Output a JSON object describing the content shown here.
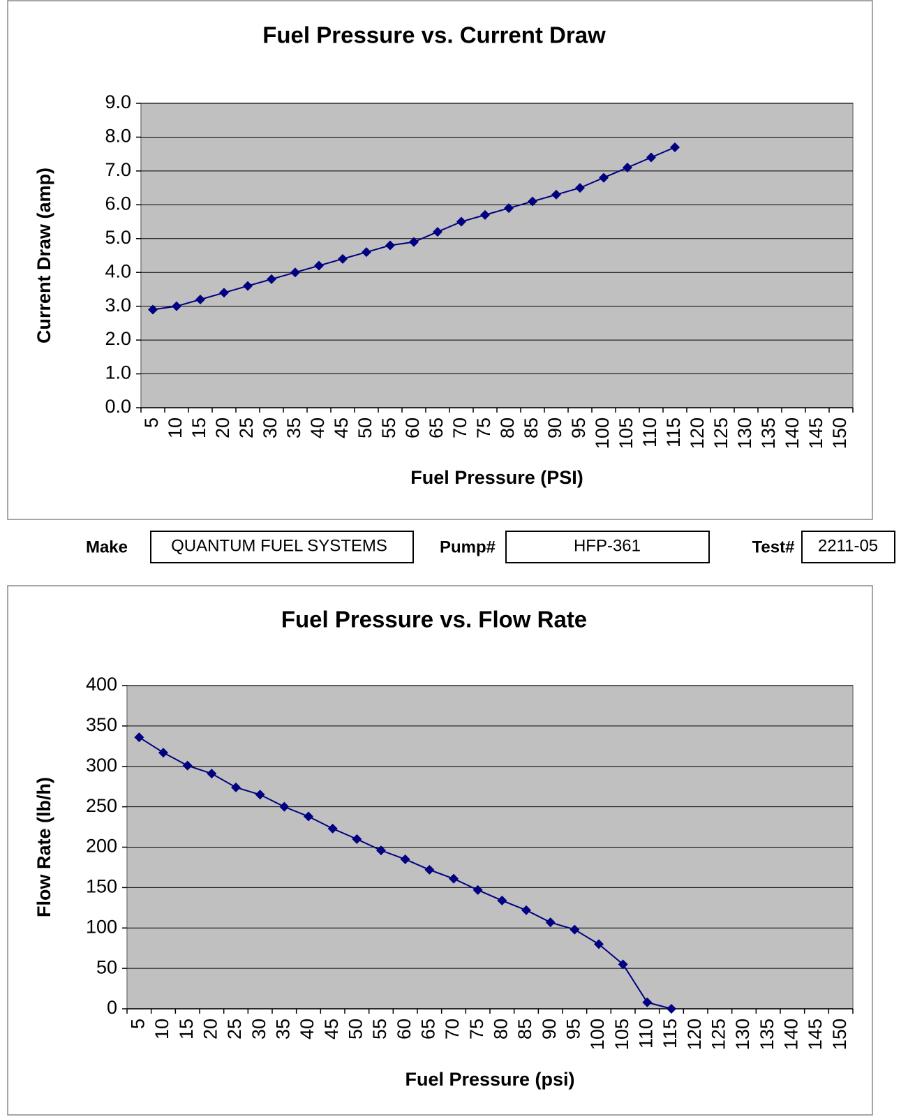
{
  "chart_data": [
    {
      "type": "line",
      "title": "Fuel Pressure vs. Current Draw",
      "x_label": "Fuel Pressure (PSI)",
      "y_label": "Current Draw (amp)",
      "categories": [
        "5",
        "10",
        "15",
        "20",
        "25",
        "30",
        "35",
        "40",
        "45",
        "50",
        "55",
        "60",
        "65",
        "70",
        "75",
        "80",
        "85",
        "90",
        "95",
        "100",
        "105",
        "110",
        "115",
        "120",
        "125",
        "130",
        "135",
        "140",
        "145",
        "150"
      ],
      "values": [
        2.9,
        3.0,
        3.2,
        3.4,
        3.6,
        3.8,
        4.0,
        4.2,
        4.4,
        4.6,
        4.8,
        4.9,
        5.2,
        5.5,
        5.7,
        5.9,
        6.1,
        6.3,
        6.5,
        6.8,
        7.1,
        7.4,
        7.7,
        null,
        null,
        null,
        null,
        null,
        null,
        null
      ],
      "color": "#000080",
      "ylim": [
        0,
        9
      ],
      "yticks": [
        {
          "value": 0,
          "label": "0.0"
        },
        {
          "value": 1,
          "label": "1.0"
        },
        {
          "value": 2,
          "label": "2.0"
        },
        {
          "value": 3,
          "label": "3.0"
        },
        {
          "value": 4,
          "label": "4.0"
        },
        {
          "value": 5,
          "label": "5.0"
        },
        {
          "value": 6,
          "label": "6.0"
        },
        {
          "value": 7,
          "label": "7.0"
        },
        {
          "value": 8,
          "label": "8.0"
        },
        {
          "value": 9,
          "label": "9.0"
        }
      ],
      "grid": true
    },
    {
      "type": "line",
      "title": "Fuel Pressure vs. Flow Rate",
      "x_label": "Fuel Pressure (psi)",
      "y_label": "Flow Rate (lb/h)",
      "categories": [
        "5",
        "10",
        "15",
        "20",
        "25",
        "30",
        "35",
        "40",
        "45",
        "50",
        "55",
        "60",
        "65",
        "70",
        "75",
        "80",
        "85",
        "90",
        "95",
        "100",
        "105",
        "110",
        "115",
        "120",
        "125",
        "130",
        "135",
        "140",
        "145",
        "150"
      ],
      "values": [
        336,
        317,
        301,
        291,
        274,
        265,
        250,
        238,
        223,
        210,
        196,
        185,
        172,
        161,
        147,
        134,
        122,
        107,
        98,
        80,
        55,
        8,
        0,
        null,
        null,
        null,
        null,
        null,
        null,
        null
      ],
      "color": "#000080",
      "ylim": [
        0,
        400
      ],
      "yticks": [
        0,
        50,
        100,
        150,
        200,
        250,
        300,
        350,
        400
      ],
      "grid": true
    }
  ],
  "form": {
    "make_label": "Make",
    "make": "QUANTUM FUEL SYSTEMS",
    "pump_label": "Pump#",
    "pump": "HFP-361",
    "test_label": "Test#",
    "test": "2211-05"
  }
}
